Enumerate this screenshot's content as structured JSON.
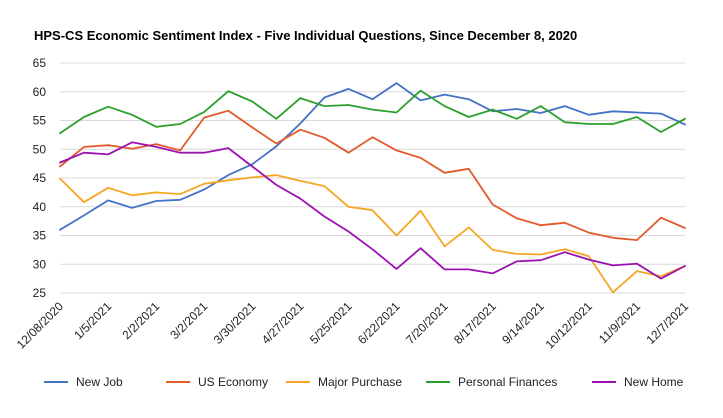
{
  "chart_data": {
    "type": "line",
    "title": "HPS-CS Economic Sentiment Index - Five Individual Questions, Since December 8, 2020",
    "xlabel": "",
    "ylabel": "",
    "ylim": [
      25,
      65
    ],
    "yticks": [
      25,
      30,
      35,
      40,
      45,
      50,
      55,
      60,
      65
    ],
    "grid": true,
    "legend_position": "bottom",
    "x": [
      0,
      1,
      2,
      3,
      4,
      5,
      6,
      7,
      8,
      9,
      10,
      11,
      12,
      13,
      14,
      15,
      16,
      17,
      18,
      19,
      20,
      21,
      22,
      23,
      24,
      25,
      26
    ],
    "xtick_labels": [
      {
        "x": 0,
        "label": "12/08/2020"
      },
      {
        "x": 2,
        "label": "1/5/2021"
      },
      {
        "x": 4,
        "label": "2/2/2021"
      },
      {
        "x": 6,
        "label": "3/2/2021"
      },
      {
        "x": 8,
        "label": "3/30/2021"
      },
      {
        "x": 10,
        "label": "4/27/2021"
      },
      {
        "x": 12,
        "label": "5/25/2021"
      },
      {
        "x": 14,
        "label": "6/22/2021"
      },
      {
        "x": 16,
        "label": "7/20/2021"
      },
      {
        "x": 18,
        "label": "8/17/2021"
      },
      {
        "x": 20,
        "label": "9/14/2021"
      },
      {
        "x": 22,
        "label": "10/12/2021"
      },
      {
        "x": 24,
        "label": "11/9/2021"
      },
      {
        "x": 26,
        "label": "12/7/2021"
      }
    ],
    "series": [
      {
        "name": "New Job",
        "color": "#4472c4",
        "values": [
          36.0,
          38.5,
          41.1,
          39.8,
          41.0,
          41.2,
          43.0,
          45.5,
          47.4,
          50.5,
          54.5,
          59.0,
          60.5,
          58.7,
          61.5,
          58.5,
          59.5,
          58.7,
          56.6,
          57.0,
          56.3,
          57.5,
          56.0,
          56.6,
          56.4,
          56.2,
          54.3
        ]
      },
      {
        "name": "US Economy",
        "color": "#e15b2b",
        "values": [
          47.0,
          50.4,
          50.7,
          50.1,
          50.9,
          49.8,
          55.5,
          56.7,
          53.8,
          51.0,
          53.4,
          52.0,
          49.4,
          52.1,
          49.8,
          48.5,
          45.9,
          46.6,
          40.4,
          38.0,
          36.8,
          37.2,
          35.5,
          34.6,
          34.2,
          38.1,
          36.3
        ]
      },
      {
        "name": "Major Purchase",
        "color": "#f5a623",
        "values": [
          44.9,
          40.8,
          43.3,
          42.0,
          42.5,
          42.2,
          44.0,
          44.6,
          45.1,
          45.5,
          44.5,
          43.6,
          40.0,
          39.4,
          35.0,
          39.3,
          33.1,
          36.4,
          32.5,
          31.8,
          31.7,
          32.6,
          31.4,
          25.1,
          28.8,
          27.9,
          29.7
        ]
      },
      {
        "name": "Personal Finances",
        "color": "#2ca02c",
        "values": [
          52.8,
          55.6,
          57.4,
          56.0,
          53.9,
          54.4,
          56.5,
          60.1,
          58.3,
          55.3,
          58.9,
          57.5,
          57.7,
          56.9,
          56.4,
          60.2,
          57.5,
          55.6,
          56.9,
          55.3,
          57.5,
          54.7,
          54.4,
          54.4,
          55.6,
          53.0,
          55.3
        ]
      },
      {
        "name": "New Home",
        "color": "#9b12b0",
        "values": [
          47.7,
          49.4,
          49.1,
          51.2,
          50.4,
          49.4,
          49.4,
          50.2,
          47.0,
          43.8,
          41.4,
          38.3,
          35.7,
          32.6,
          29.2,
          32.8,
          29.1,
          29.1,
          28.4,
          30.5,
          30.7,
          32.1,
          30.8,
          29.8,
          30.1,
          27.5,
          29.7
        ]
      }
    ]
  }
}
